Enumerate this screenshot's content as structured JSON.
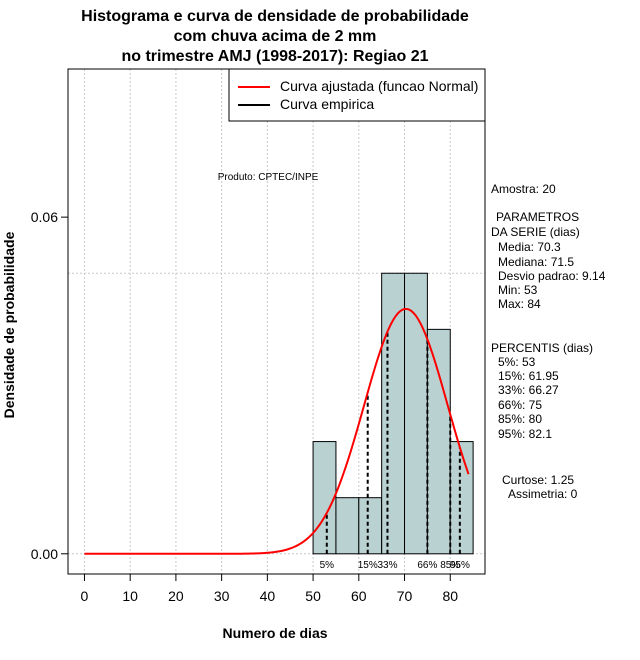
{
  "chart_data": {
    "type": "bar",
    "title": [
      "Histograma e curva de densidade de probabilidade",
      "com chuva acima de 2 mm",
      "no trimestre AMJ (1998-2017): Regiao 21"
    ],
    "xlabel": "Numero de dias",
    "ylabel": "Densidade de probabilidade",
    "xlim": [
      -3.6,
      87.6
    ],
    "ylim": [
      -0.0036,
      0.0864
    ],
    "x_ticks": [
      0,
      10,
      20,
      30,
      40,
      50,
      60,
      70,
      80
    ],
    "y_ticks": [
      0.0,
      0.06
    ],
    "y_tick_labels": [
      "0.00",
      "0.06"
    ],
    "grid": true,
    "bins": [
      {
        "from": 50,
        "to": 55,
        "density": 0.02
      },
      {
        "from": 55,
        "to": 60,
        "density": 0.01
      },
      {
        "from": 60,
        "to": 65,
        "density": 0.01
      },
      {
        "from": 65,
        "to": 70,
        "density": 0.05
      },
      {
        "from": 70,
        "to": 75,
        "density": 0.05
      },
      {
        "from": 75,
        "to": 80,
        "density": 0.04
      },
      {
        "from": 80,
        "to": 85,
        "density": 0.02
      }
    ],
    "bar_color": "#b9d1d1",
    "normal_curve": {
      "mean": 70.3,
      "sd": 9.14,
      "x_start": 0,
      "x_end": 84,
      "color": "#ff0000"
    },
    "percentile_lines": [
      {
        "value": 53,
        "label": "5%"
      },
      {
        "value": 61.95,
        "label": "15%"
      },
      {
        "value": 66.27,
        "label": "33%"
      },
      {
        "value": 75,
        "label": "66%"
      },
      {
        "value": 80,
        "label": "85%"
      },
      {
        "value": 82.1,
        "label": "95%"
      }
    ],
    "legend": {
      "position": "top-right",
      "entries": [
        {
          "label": "Curva ajustada (funcao Normal)",
          "color": "#ff0000"
        },
        {
          "label": "Curva empirica",
          "color": "#000000"
        }
      ]
    },
    "annotation": "Produto: CPTEC/INPE"
  },
  "side_panel": {
    "sample": "Amostra: 20",
    "params_title": "PARAMETROS",
    "params_subtitle": "DA SERIE (dias)",
    "params": [
      "Media: 70.3",
      "Mediana: 71.5",
      "Desvio padrao: 9.14",
      "Min: 53",
      "Max: 84"
    ],
    "percentis_title": "PERCENTIS (dias)",
    "percentis": [
      "5%: 53",
      "15%: 61.95",
      "33%: 66.27",
      "66%: 75",
      "85%: 80",
      "95%: 82.1"
    ],
    "curtose": "Curtose: 1.25",
    "assimetria": "Assimetria: 0"
  }
}
